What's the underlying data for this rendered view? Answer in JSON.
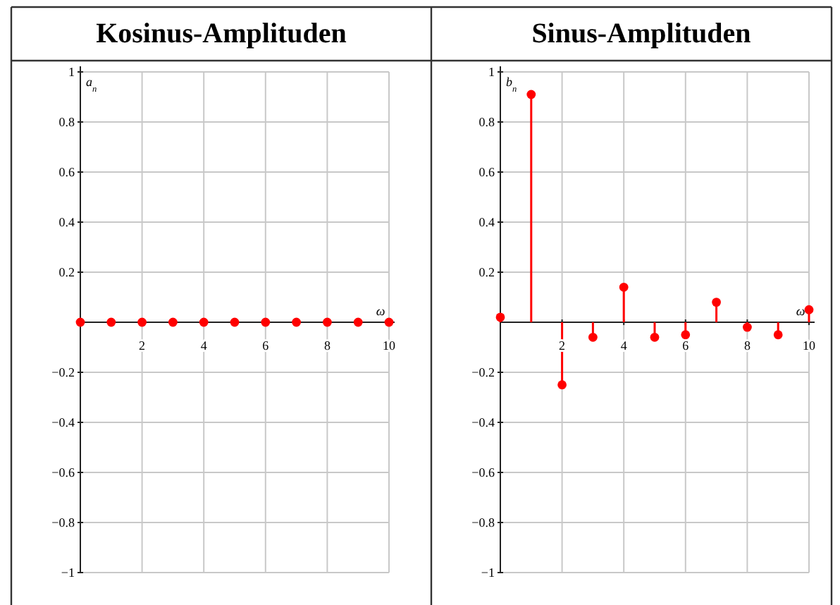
{
  "chart_data": [
    {
      "type": "lollipop",
      "title": "Kosinus-Amplituden",
      "xlabel": "ω",
      "ylabel": "a$_{n}$",
      "x": [
        0,
        1,
        2,
        3,
        4,
        5,
        6,
        7,
        8,
        9,
        10
      ],
      "series": [
        {
          "color": "#ff0000",
          "values": [
            0,
            0,
            0,
            0,
            0,
            0,
            0,
            0,
            0,
            0,
            0
          ]
        }
      ],
      "xlim": [
        0,
        10
      ],
      "xticks": [
        2,
        4,
        6,
        8,
        10
      ],
      "ylim": [
        -1,
        1
      ],
      "yticks": [
        {
          "value": -1,
          "label": "−1"
        },
        {
          "value": -0.8,
          "label": "−0.8"
        },
        {
          "value": -0.6,
          "label": "−0.6"
        },
        {
          "value": -0.4,
          "label": "−0.4"
        },
        {
          "value": -0.2,
          "label": "−0.2"
        },
        0.2,
        0.4,
        0.6,
        0.8,
        1
      ],
      "grid": true,
      "marker": "circle"
    },
    {
      "type": "lollipop",
      "title": "Sinus-Amplituden",
      "xlabel": "ω",
      "ylabel": "b$_{n}$",
      "x": [
        0,
        1,
        2,
        3,
        4,
        5,
        6,
        7,
        8,
        9,
        10
      ],
      "series": [
        {
          "color": "#ff0000",
          "values": [
            0.02,
            0.91,
            -0.25,
            -0.06,
            0.14,
            -0.06,
            -0.05,
            0.08,
            -0.02,
            -0.05,
            0.05
          ]
        }
      ],
      "xlim": [
        0,
        10
      ],
      "xticks": [
        2,
        4,
        6,
        8,
        10
      ],
      "ylim": [
        -1,
        1
      ],
      "yticks": [
        {
          "value": -1,
          "label": "−1"
        },
        {
          "value": -0.8,
          "label": "−0.8"
        },
        {
          "value": -0.6,
          "label": "−0.6"
        },
        {
          "value": -0.4,
          "label": "−0.4"
        },
        {
          "value": -0.2,
          "label": "−0.2"
        },
        0.2,
        0.4,
        0.6,
        0.8,
        1
      ],
      "grid": true,
      "marker": "circle"
    }
  ]
}
